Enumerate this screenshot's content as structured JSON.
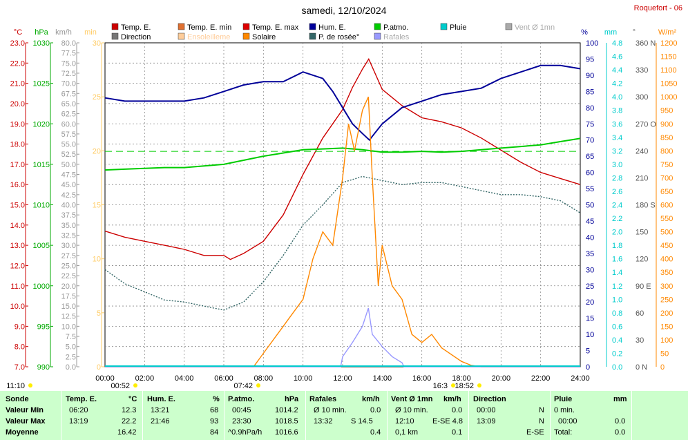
{
  "header": {
    "title": "samedi, 12/10/2024",
    "station": "Roquefort - 06"
  },
  "legend": [
    {
      "label": "Temp. E.",
      "color": "#cc0000"
    },
    {
      "label": "Temp. E. min",
      "color": "#e07030"
    },
    {
      "label": "Temp. E. max",
      "color": "#dd0000"
    },
    {
      "label": "Hum. E.",
      "color": "#000099"
    },
    {
      "label": "P.atmo.",
      "color": "#00cc00"
    },
    {
      "label": "Pluie",
      "color": "#00cccc"
    },
    {
      "label": "Vent Ø 1mn",
      "color": "#aaaaaa"
    },
    {
      "label": "Direction",
      "color": "#777777"
    },
    {
      "label": "Ensoleilleme",
      "color": "#ffcc99"
    },
    {
      "label": "Solaire",
      "color": "#ff8800"
    },
    {
      "label": "P. de rosée°",
      "color": "#336666"
    },
    {
      "label": "Rafales",
      "color": "#9999ff"
    }
  ],
  "axes": {
    "left_units": {
      "temp": "°C",
      "press": "hPa",
      "wind": "km/h",
      "min": "min"
    },
    "right_units": {
      "hum": "%",
      "rain": "mm",
      "dir": "°",
      "solar": "W/m²"
    },
    "temp_ticks": [
      "23.0",
      "22.0",
      "21.0",
      "20.0",
      "19.0",
      "18.0",
      "17.0",
      "16.0",
      "15.0",
      "14.0",
      "13.0",
      "12.0",
      "11.0",
      "10.0",
      "9.0",
      "8.0",
      "7.0"
    ],
    "press_ticks": [
      "1030",
      "1025",
      "1020",
      "1015",
      "1010",
      "1005",
      "1000",
      "995",
      "990"
    ],
    "wind_ticks": [
      "80.0",
      "77.5",
      "75.0",
      "72.5",
      "70.0",
      "67.5",
      "65.0",
      "62.5",
      "60.0",
      "57.5",
      "55.0",
      "52.5",
      "50.0",
      "47.5",
      "45.0",
      "42.5",
      "40.0",
      "37.5",
      "35.0",
      "32.5",
      "30.0",
      "27.5",
      "25.0",
      "22.5",
      "20.0",
      "17.5",
      "15.0",
      "12.5",
      "10.0",
      "7.5",
      "5.0",
      "2.5",
      "0.0"
    ],
    "min_ticks": [
      "30",
      "25",
      "20",
      "15",
      "10",
      "5",
      "0"
    ],
    "hum_ticks": [
      "100",
      "95",
      "90",
      "85",
      "80",
      "75",
      "70",
      "65",
      "60",
      "55",
      "50",
      "45",
      "40",
      "35",
      "30",
      "25",
      "20",
      "15",
      "10",
      "5",
      "0"
    ],
    "rain_ticks": [
      "4.8",
      "4.6",
      "4.4",
      "4.2",
      "4.0",
      "3.8",
      "3.6",
      "3.4",
      "3.2",
      "3.0",
      "2.8",
      "2.6",
      "2.4",
      "2.2",
      "2.0",
      "1.8",
      "1.6",
      "1.4",
      "1.2",
      "1.0",
      "0.8",
      "0.6",
      "0.4",
      "0.2",
      "0.0"
    ],
    "dir_ticks": [
      "360 N",
      "330",
      "300",
      "270 O",
      "240",
      "210",
      "180 S",
      "150",
      "120",
      "90 E",
      "60",
      "30",
      "0 N"
    ],
    "solar_ticks": [
      "1200",
      "1150",
      "1100",
      "1050",
      "1000",
      "950",
      "900",
      "850",
      "800",
      "750",
      "700",
      "650",
      "600",
      "550",
      "500",
      "450",
      "400",
      "350",
      "300",
      "250",
      "200",
      "150",
      "100",
      "50",
      "0"
    ],
    "x_ticks": [
      "00:00",
      "02:00",
      "04:00",
      "06:00",
      "08:00",
      "10:00",
      "12:00",
      "14:00",
      "16:00",
      "18:00",
      "20:00",
      "22:00",
      "24:00"
    ]
  },
  "sun_labels": [
    "11:10",
    "00:52",
    "07:42",
    "16:3",
    "18:52"
  ],
  "chart_data": {
    "type": "line",
    "x_unit": "hours",
    "xlim": [
      0,
      24
    ],
    "temp_ylim": [
      7,
      23
    ],
    "series": [
      {
        "name": "Temp. E.",
        "color": "#cc0000",
        "axis": "temp",
        "x": [
          0,
          1,
          2,
          3,
          4,
          5,
          6,
          6.33,
          7,
          8,
          9,
          10,
          11,
          12,
          12.5,
          13,
          13.32,
          14,
          15,
          16,
          17,
          18,
          19,
          20,
          21,
          22,
          23,
          24
        ],
        "y": [
          13.7,
          13.4,
          13.2,
          13.0,
          12.8,
          12.5,
          12.5,
          12.3,
          12.6,
          13.2,
          14.5,
          16.5,
          18.3,
          19.7,
          20.8,
          21.7,
          22.2,
          20.7,
          19.9,
          19.3,
          19.1,
          18.8,
          18.3,
          17.7,
          17.1,
          16.6,
          16.3,
          16.0
        ]
      },
      {
        "name": "Hum. E.",
        "color": "#000099",
        "axis": "hum",
        "x": [
          0,
          1,
          2,
          3,
          4,
          5,
          6,
          7,
          8,
          9,
          10,
          11,
          11.5,
          12,
          12.5,
          13,
          13.35,
          14,
          15,
          16,
          17,
          18,
          19,
          20,
          21,
          22,
          23,
          24
        ],
        "y": [
          83,
          82,
          82,
          82,
          82,
          83,
          85,
          87,
          88,
          88,
          91,
          89,
          85,
          80,
          75,
          72,
          70,
          75,
          80,
          82,
          84,
          85,
          86,
          89,
          91,
          93,
          93,
          92
        ]
      },
      {
        "name": "P.atmo.",
        "color": "#00cc00",
        "axis": "press",
        "x": [
          0,
          1,
          2,
          3,
          4,
          5,
          6,
          7,
          8,
          9,
          10,
          11,
          12,
          13,
          14,
          15,
          16,
          17,
          18,
          19,
          20,
          21,
          22,
          23,
          24
        ],
        "y": [
          1014.3,
          1014.4,
          1014.5,
          1014.6,
          1014.6,
          1014.8,
          1015.0,
          1015.5,
          1016.0,
          1016.4,
          1016.8,
          1016.9,
          1017.0,
          1016.8,
          1016.5,
          1016.5,
          1016.6,
          1016.5,
          1016.6,
          1016.8,
          1017.0,
          1017.2,
          1017.4,
          1017.8,
          1018.2
        ]
      },
      {
        "name": "P. de rosée°",
        "color": "#336666",
        "axis": "temp",
        "x": [
          0,
          1,
          2,
          3,
          4,
          5,
          6,
          7,
          8,
          9,
          10,
          11,
          12,
          13,
          14,
          15,
          16,
          17,
          18,
          19,
          20,
          21,
          22,
          23,
          24
        ],
        "y": [
          11.8,
          11.1,
          10.7,
          10.3,
          10.2,
          10.0,
          9.8,
          10.2,
          11.2,
          12.5,
          14.0,
          15.0,
          16.1,
          16.4,
          16.2,
          16.0,
          16.1,
          16.1,
          15.9,
          15.7,
          15.5,
          15.5,
          15.4,
          15.2,
          14.6
        ]
      },
      {
        "name": "Solaire",
        "color": "#ff8800",
        "axis": "solar",
        "x": [
          0,
          7.5,
          8,
          9,
          9.5,
          10,
          10.5,
          11,
          11.5,
          12,
          12.3,
          12.6,
          13,
          13.3,
          13.5,
          13.8,
          14,
          14.5,
          15,
          15.5,
          16,
          16.5,
          17,
          18,
          18.5,
          19,
          24
        ],
        "y": [
          0,
          0,
          50,
          150,
          200,
          250,
          400,
          500,
          450,
          700,
          900,
          800,
          950,
          1000,
          700,
          300,
          450,
          300,
          250,
          120,
          90,
          120,
          70,
          20,
          5,
          0,
          0
        ]
      },
      {
        "name": "Rafales",
        "color": "#9999ff",
        "axis": "wind",
        "x": [
          0,
          11.9,
          12,
          12.5,
          13,
          13.3,
          13.5,
          14,
          14.5,
          15,
          15.1,
          24
        ],
        "y": [
          0,
          0,
          2.5,
          6.0,
          10.0,
          14.5,
          8.0,
          5.0,
          2.5,
          1.0,
          0,
          0
        ]
      }
    ],
    "reference_line": {
      "color": "#00cc00",
      "style": "dashed",
      "axis": "press",
      "value": 1016.6
    }
  },
  "summary": {
    "headers": {
      "sonde": "Sonde",
      "temp": "Temp. E.",
      "temp_u": "°C",
      "hum": "Hum. E.",
      "hum_u": "%",
      "press": "P.atmo.",
      "press_u": "hPa",
      "gust": "Rafales",
      "gust_u": "km/h",
      "wind": "Vent Ø 1mn",
      "wind_u": "km/h",
      "dir": "Direction",
      "rain": "Pluie",
      "rain_u": "mm"
    },
    "rows": [
      {
        "label": "Valeur Min",
        "temp_t": "06:20",
        "temp_v": "12.3",
        "hum_t": "13:21",
        "hum_v": "68",
        "press_t": "00:45",
        "press_v": "1014.2",
        "gust_t": "Ø 10 min.",
        "gust_v": "0.0",
        "wind_t": "Ø 10 min.",
        "wind_v": "0.0",
        "dir_t": "00:00",
        "dir_v": "N",
        "rain_t": "0 min.",
        "rain_v": ""
      },
      {
        "label": "Valeur Max",
        "temp_t": "13:19",
        "temp_v": "22.2",
        "hum_t": "21:46",
        "hum_v": "93",
        "press_t": "23:30",
        "press_v": "1018.5",
        "gust_t": "13:32",
        "gust_v": "S 14.5",
        "wind_t": "12:10",
        "wind_v": "E-SE 4.8",
        "dir_t": "13:09",
        "dir_v": "N",
        "rain_t": "00:00",
        "rain_v": "0.0"
      },
      {
        "label": "Moyenne",
        "temp_t": "",
        "temp_v": "16.42",
        "hum_t": "",
        "hum_v": "84",
        "press_t": "^0.9hPa/h",
        "press_v": "1016.6",
        "gust_t": "",
        "gust_v": "0.4",
        "wind_t": "0,1 km",
        "wind_v": "0.1",
        "dir_t": "",
        "dir_v": "E-SE",
        "rain_t": "Total:",
        "rain_v": "0.0"
      }
    ]
  }
}
